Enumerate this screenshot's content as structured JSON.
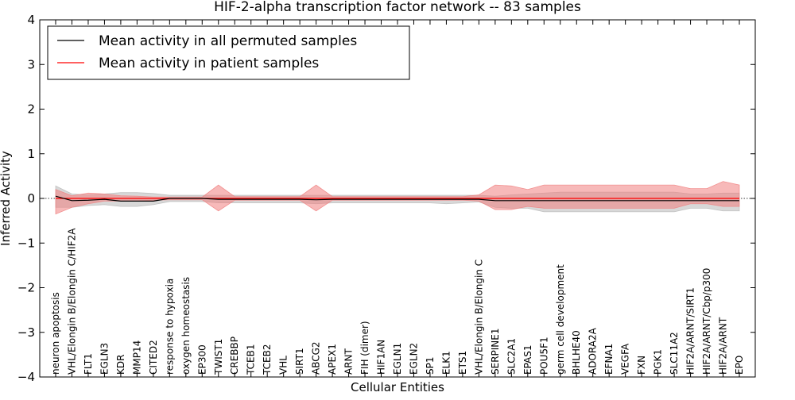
{
  "chart_data": {
    "type": "line",
    "title": "HIF-2-alpha transcription factor network -- 83 samples",
    "xlabel": "Cellular Entities",
    "ylabel": "Inferred Activity",
    "ylim": [
      -4,
      4
    ],
    "yticks": [
      -4,
      -3,
      -2,
      -1,
      0,
      1,
      2,
      3,
      4
    ],
    "ytick_labels": [
      "−4",
      "−3",
      "−2",
      "−1",
      "0",
      "1",
      "2",
      "3",
      "4"
    ],
    "categories": [
      "neuron apoptosis",
      "VHL/Elongin B/Elongin C/HIF2A",
      "FLT1",
      "EGLN3",
      "KDR",
      "MMP14",
      "CITED2",
      "response to hypoxia",
      "oxygen homeostasis",
      "EP300",
      "TWIST1",
      "CREBBP",
      "TCEB1",
      "TCEB2",
      "VHL",
      "SIRT1",
      "ABCG2",
      "APEX1",
      "ARNT",
      "FIH (dimer)",
      "HIF1AN",
      "EGLN1",
      "EGLN2",
      "SP1",
      "ELK1",
      "ETS1",
      "VHL/Elongin B/Elongin C",
      "SERPINE1",
      "SLC2A1",
      "EPAS1",
      "POU5F1",
      "germ cell development",
      "BHLHE40",
      "ADORA2A",
      "EFNA1",
      "VEGFA",
      "FXN",
      "PGK1",
      "SLC11A2",
      "HIF2A/ARNT/SIRT1",
      "HIF2A/ARNT/Cbp/p300",
      "HIF2A/ARNT",
      "EPO"
    ],
    "legend": {
      "location": "top-left",
      "entries": [
        "Mean activity in all permuted samples",
        "Mean activity in patient samples"
      ]
    },
    "series": [
      {
        "name": "Mean activity in all permuted samples",
        "color": "#000000",
        "band_color": "#b8b8b8",
        "values": [
          0.05,
          -0.05,
          -0.04,
          -0.02,
          -0.06,
          -0.06,
          -0.06,
          0.0,
          0.0,
          0.0,
          -0.02,
          -0.02,
          -0.02,
          -0.02,
          -0.02,
          -0.02,
          -0.03,
          -0.02,
          -0.02,
          -0.02,
          -0.02,
          -0.02,
          -0.02,
          -0.02,
          -0.02,
          -0.02,
          -0.02,
          -0.05,
          -0.05,
          -0.05,
          -0.05,
          -0.05,
          -0.05,
          -0.05,
          -0.05,
          -0.05,
          -0.05,
          -0.05,
          -0.05,
          -0.05,
          -0.05,
          -0.05,
          -0.05
        ],
        "upper": [
          0.28,
          0.1,
          0.08,
          0.1,
          0.13,
          0.13,
          0.11,
          0.07,
          0.07,
          0.07,
          0.07,
          0.07,
          0.07,
          0.07,
          0.07,
          0.07,
          0.07,
          0.07,
          0.07,
          0.07,
          0.07,
          0.07,
          0.07,
          0.07,
          0.07,
          0.07,
          0.07,
          0.05,
          0.08,
          0.1,
          0.12,
          0.14,
          0.14,
          0.14,
          0.14,
          0.14,
          0.14,
          0.14,
          0.14,
          0.1,
          0.1,
          0.12,
          0.12
        ],
        "lower": [
          -0.2,
          -0.2,
          -0.16,
          -0.14,
          -0.18,
          -0.18,
          -0.14,
          -0.07,
          -0.07,
          -0.07,
          -0.1,
          -0.1,
          -0.1,
          -0.1,
          -0.1,
          -0.1,
          -0.12,
          -0.1,
          -0.1,
          -0.1,
          -0.1,
          -0.1,
          -0.1,
          -0.1,
          -0.12,
          -0.1,
          -0.08,
          -0.2,
          -0.22,
          -0.22,
          -0.3,
          -0.3,
          -0.3,
          -0.3,
          -0.3,
          -0.3,
          -0.3,
          -0.3,
          -0.3,
          -0.22,
          -0.22,
          -0.28,
          -0.28
        ]
      },
      {
        "name": "Mean activity in patient samples",
        "color": "#ff0000",
        "band_color": "#f08080",
        "values": [
          0.0,
          0.0,
          0.0,
          0.0,
          0.0,
          0.0,
          0.0,
          0.0,
          0.0,
          0.0,
          0.0,
          0.0,
          0.0,
          0.0,
          0.0,
          0.0,
          0.0,
          0.0,
          0.0,
          0.0,
          0.0,
          0.0,
          0.0,
          0.0,
          0.0,
          0.0,
          0.0,
          0.0,
          0.0,
          0.0,
          0.0,
          0.0,
          0.0,
          0.0,
          0.0,
          0.0,
          0.0,
          0.0,
          0.0,
          0.0,
          0.0,
          0.0,
          0.0
        ],
        "upper": [
          0.2,
          0.06,
          0.12,
          0.1,
          0.06,
          0.05,
          0.03,
          0.03,
          0.03,
          0.03,
          0.3,
          0.04,
          0.04,
          0.04,
          0.04,
          0.04,
          0.3,
          0.04,
          0.04,
          0.04,
          0.04,
          0.04,
          0.04,
          0.04,
          0.04,
          0.04,
          0.08,
          0.3,
          0.28,
          0.2,
          0.3,
          0.3,
          0.3,
          0.3,
          0.3,
          0.3,
          0.3,
          0.3,
          0.3,
          0.22,
          0.22,
          0.38,
          0.3
        ],
        "lower": [
          -0.35,
          -0.2,
          -0.12,
          -0.06,
          -0.06,
          -0.06,
          -0.04,
          -0.03,
          -0.03,
          -0.03,
          -0.28,
          -0.04,
          -0.04,
          -0.04,
          -0.04,
          -0.04,
          -0.28,
          -0.04,
          -0.04,
          -0.04,
          -0.04,
          -0.04,
          -0.04,
          -0.04,
          -0.04,
          -0.04,
          -0.06,
          -0.25,
          -0.25,
          -0.18,
          -0.22,
          -0.22,
          -0.22,
          -0.22,
          -0.22,
          -0.22,
          -0.22,
          -0.22,
          -0.22,
          -0.12,
          -0.12,
          -0.18,
          -0.18
        ]
      }
    ]
  }
}
